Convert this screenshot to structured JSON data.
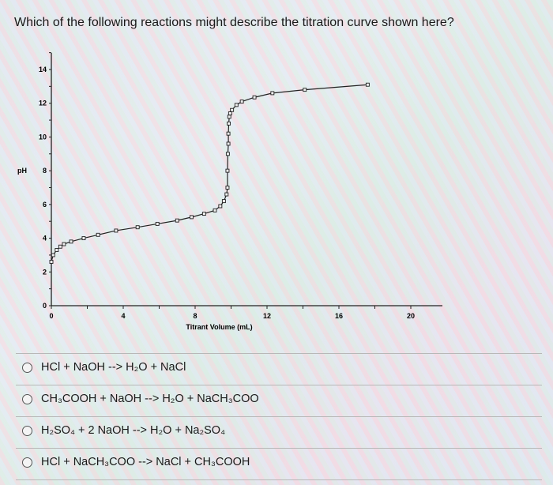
{
  "question": "Which of the following reactions might describe the titration curve shown here?",
  "chart_data": {
    "type": "scatter",
    "title": "",
    "xlabel": "Titrant Volume (mL)",
    "ylabel": "pH",
    "xlim": [
      0,
      20
    ],
    "ylim": [
      0,
      15
    ],
    "xticks": [
      0,
      4,
      8,
      12,
      16,
      20
    ],
    "yticks": [
      0,
      2,
      4,
      6,
      8,
      10,
      12,
      14
    ],
    "grid": false,
    "markers": "open-square",
    "connected": true,
    "x": [
      0,
      0.1,
      0.3,
      0.5,
      0.7,
      1.1,
      1.8,
      2.6,
      3.6,
      4.8,
      5.9,
      7.0,
      7.8,
      8.5,
      9.1,
      9.4,
      9.6,
      9.75,
      9.8,
      9.8,
      9.82,
      9.85,
      9.85,
      9.87,
      9.9,
      9.95,
      10.05,
      10.3,
      10.6,
      11.3,
      12.3,
      14.1,
      17.6
    ],
    "y": [
      2.6,
      3.0,
      3.3,
      3.5,
      3.65,
      3.8,
      4.0,
      4.2,
      4.45,
      4.65,
      4.85,
      5.05,
      5.25,
      5.45,
      5.65,
      5.9,
      6.2,
      6.6,
      7.0,
      8.0,
      9.0,
      9.6,
      10.2,
      10.8,
      11.2,
      11.4,
      11.6,
      11.9,
      12.1,
      12.35,
      12.6,
      12.8,
      13.1
    ]
  },
  "options": [
    {
      "label": "HCl + NaOH --> H₂O + NaCl"
    },
    {
      "label": "CH₃COOH + NaOH --> H₂O + NaCH₃COO"
    },
    {
      "label": "H₂SO₄ + 2 NaOH --> H₂O + Na₂SO₄"
    },
    {
      "label": "HCl + NaCH₃COO --> NaCl + CH₃COOH"
    }
  ]
}
